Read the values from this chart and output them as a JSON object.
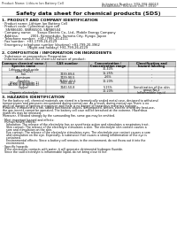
{
  "header_left": "Product Name: Lithium Ion Battery Cell",
  "header_right_1": "Substance Number: SDS-008-00010",
  "header_right_2": "Established / Revision: Dec.7.2010",
  "title": "Safety data sheet for chemical products (SDS)",
  "section1_title": "1. PRODUCT AND COMPANY IDENTIFICATION",
  "section1_lines": [
    "· Product name: Lithium Ion Battery Cell",
    "· Product code: Cylindrical-type cell",
    "   SNR86600, SNR86500, SNR86504",
    "· Company name:      Sanyo Electric Co., Ltd., Mobile Energy Company",
    "· Address:            2001, Kamionkubo, Sumoto-City, Hyogo, Japan",
    "· Telephone number:  +81-(799)-20-4111",
    "· Fax number:  +81-1799-26-4129",
    "· Emergency telephone number (daytime) +81-799-20-3962",
    "                         (Night and holiday) +81-799-26-4129"
  ],
  "section2_title": "2. COMPOSITION / INFORMATION ON INGREDIENTS",
  "section2_intro": "· Substance or preparation: Preparation",
  "section2_sub": "· Information about the chemical nature of product:",
  "table_col_headers": [
    "Common chemical name /\nSpecies name",
    "CAS number",
    "Concentration /\nConcentration range",
    "Classification and\nhazard labeling"
  ],
  "table_rows": [
    [
      "Lithium cobalt oxide\n(LiMn-CoO2)",
      "-",
      "30-40%",
      "-"
    ],
    [
      "Iron",
      "7439-89-6",
      "15-25%",
      "-"
    ],
    [
      "Aluminum",
      "7429-90-5",
      "2-6%",
      "-"
    ],
    [
      "Graphite\n(Kind of graphite-1)\n(Al-Mn of graphite-1)",
      "77782-42-5\n7782-44-2",
      "10-20%",
      "-"
    ],
    [
      "Copper",
      "7440-50-8",
      "5-15%",
      "Sensitization of the skin\ngroup No.2"
    ],
    [
      "Organic electrolyte",
      "-",
      "10-20%",
      "Inflammable liquid"
    ]
  ],
  "section3_title": "3. HAZARDS IDENTIFICATION",
  "section3_text": [
    "For the battery cell, chemical materials are stored in a hermetically sealed metal case, designed to withstand",
    "temperatures and pressures encountered during normal use. As a result, during normal use, there is no",
    "physical danger of ignition or explosion and there is no danger of hazardous materials leakage.",
    "However, if exposed to a fire, added mechanical shocks, decomposed, written, electric strong dry heat,use,",
    "the gas insects cannot be operated. The battery cell case will be breached at the extreme. Hazardous",
    "materials may be released.",
    "Moreover, if heated strongly by the surrounding fire, some gas may be emitted.",
    "",
    "· Most important hazard and effects:",
    "  Human health effects:",
    "    Inhalation: The release of the electrolyte has an anesthesia action and stimulates a respiratory tract.",
    "    Skin contact: The release of the electrolyte stimulates a skin. The electrolyte skin contact causes a",
    "    sore and stimulation on the skin.",
    "    Eye contact: The release of the electrolyte stimulates eyes. The electrolyte eye contact causes a sore",
    "    and stimulation on the eye. Especially, a substance that causes a strong inflammation of the eye is",
    "    contained.",
    "    Environmental effects: Since a battery cell remains in the environment, do not throw out it into the",
    "    environment.",
    "",
    "· Specific hazards:",
    "  If the electrolyte contacts with water, it will generate detrimental hydrogen fluoride.",
    "  Since the said electrolyte is inflammable liquid, do not bring close to fire."
  ],
  "bg_color": "#ffffff",
  "header_line_color": "#aaaaaa",
  "table_header_bg": "#c8c8c8",
  "table_border_color": "#666666"
}
